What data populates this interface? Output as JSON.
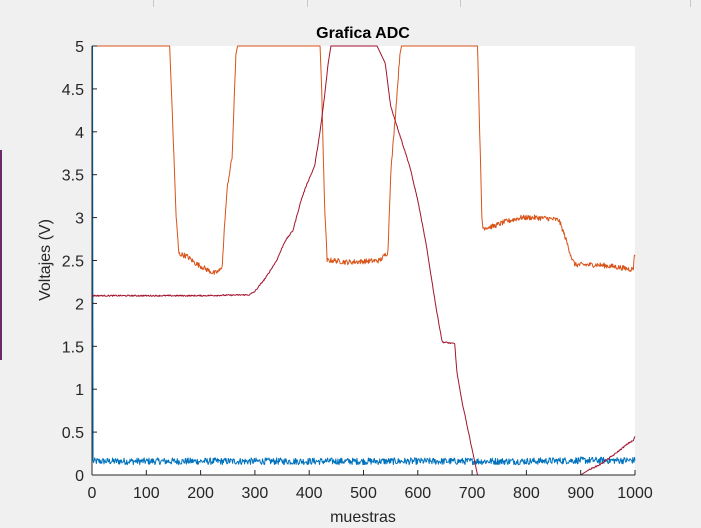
{
  "chart_data": {
    "type": "line",
    "title": "Grafica ADC",
    "xlabel": "muestras",
    "ylabel": "Voltajes (V)",
    "xlim": [
      0,
      1000
    ],
    "ylim": [
      0,
      5
    ],
    "xticks": [
      0,
      100,
      200,
      300,
      400,
      500,
      600,
      700,
      800,
      900,
      1000
    ],
    "yticks": [
      0,
      0.5,
      1,
      1.5,
      2,
      2.5,
      3,
      3.5,
      4,
      4.5,
      5
    ],
    "grid": false,
    "legend": "none",
    "series": [
      {
        "color": "#0072BD",
        "noise": 0.04,
        "points": [
          [
            0,
            0
          ],
          [
            1,
            5
          ],
          [
            2,
            0.16
          ],
          [
            100,
            0.16
          ],
          [
            200,
            0.16
          ],
          [
            300,
            0.16
          ],
          [
            400,
            0.16
          ],
          [
            500,
            0.16
          ],
          [
            600,
            0.16
          ],
          [
            700,
            0.16
          ],
          [
            800,
            0.16
          ],
          [
            900,
            0.17
          ],
          [
            1000,
            0.17
          ]
        ]
      },
      {
        "color": "#D95319",
        "noise": 0.03,
        "points": [
          [
            0,
            5
          ],
          [
            143,
            5
          ],
          [
            148,
            4.2
          ],
          [
            155,
            3
          ],
          [
            160,
            2.58
          ],
          [
            175,
            2.55
          ],
          [
            190,
            2.47
          ],
          [
            210,
            2.4
          ],
          [
            225,
            2.35
          ],
          [
            235,
            2.38
          ],
          [
            240,
            2.45
          ],
          [
            245,
            3
          ],
          [
            250,
            3.4
          ],
          [
            258,
            3.7
          ],
          [
            265,
            4.9
          ],
          [
            268,
            5
          ],
          [
            420,
            5
          ],
          [
            423,
            4.5
          ],
          [
            428,
            3.2
          ],
          [
            433,
            2.5
          ],
          [
            445,
            2.5
          ],
          [
            470,
            2.48
          ],
          [
            500,
            2.49
          ],
          [
            530,
            2.5
          ],
          [
            545,
            2.6
          ],
          [
            550,
            3.5
          ],
          [
            560,
            4.3
          ],
          [
            567,
            4.9
          ],
          [
            570,
            5
          ],
          [
            710,
            5
          ],
          [
            712,
            4.5
          ],
          [
            718,
            3
          ],
          [
            720,
            2.88
          ],
          [
            740,
            2.9
          ],
          [
            760,
            2.95
          ],
          [
            790,
            3
          ],
          [
            815,
            3
          ],
          [
            840,
            2.99
          ],
          [
            860,
            2.97
          ],
          [
            870,
            2.8
          ],
          [
            885,
            2.5
          ],
          [
            890,
            2.45
          ],
          [
            930,
            2.45
          ],
          [
            960,
            2.43
          ],
          [
            990,
            2.4
          ],
          [
            997,
            2.4
          ],
          [
            998,
            2.53
          ],
          [
            1000,
            2.55
          ]
        ]
      },
      {
        "color": "#A2142F",
        "noise": 0.008,
        "points": [
          [
            0,
            2.09
          ],
          [
            100,
            2.09
          ],
          [
            200,
            2.09
          ],
          [
            290,
            2.1
          ],
          [
            300,
            2.14
          ],
          [
            320,
            2.3
          ],
          [
            340,
            2.5
          ],
          [
            355,
            2.72
          ],
          [
            370,
            2.85
          ],
          [
            385,
            3.2
          ],
          [
            395,
            3.38
          ],
          [
            410,
            3.6
          ],
          [
            420,
            4
          ],
          [
            428,
            4.4
          ],
          [
            435,
            4.8
          ],
          [
            440,
            5
          ],
          [
            525,
            5
          ],
          [
            540,
            4.8
          ],
          [
            550,
            4.3
          ],
          [
            570,
            3.9
          ],
          [
            585,
            3.6
          ],
          [
            600,
            3.2
          ],
          [
            615,
            2.7
          ],
          [
            625,
            2.3
          ],
          [
            635,
            1.9
          ],
          [
            645,
            1.55
          ],
          [
            668,
            1.53
          ],
          [
            672,
            1.2
          ],
          [
            680,
            0.9
          ],
          [
            690,
            0.6
          ],
          [
            700,
            0.3
          ],
          [
            710,
            0
          ],
          [
            900,
            0
          ],
          [
            915,
            0.06
          ],
          [
            935,
            0.12
          ],
          [
            960,
            0.23
          ],
          [
            990,
            0.38
          ],
          [
            997,
            0.4
          ],
          [
            1000,
            0.45
          ]
        ]
      }
    ]
  }
}
